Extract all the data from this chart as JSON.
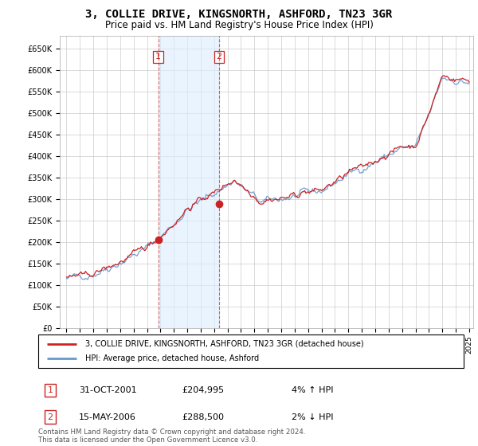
{
  "title": "3, COLLIE DRIVE, KINGSNORTH, ASHFORD, TN23 3GR",
  "subtitle": "Price paid vs. HM Land Registry's House Price Index (HPI)",
  "title_fontsize": 10,
  "subtitle_fontsize": 8.5,
  "ylim": [
    0,
    680000
  ],
  "yticks": [
    0,
    50000,
    100000,
    150000,
    200000,
    250000,
    300000,
    350000,
    400000,
    450000,
    500000,
    550000,
    600000,
    650000
  ],
  "ytick_labels": [
    "£0",
    "£50K",
    "£100K",
    "£150K",
    "£200K",
    "£250K",
    "£300K",
    "£350K",
    "£400K",
    "£450K",
    "£500K",
    "£550K",
    "£600K",
    "£650K"
  ],
  "x_start_year": 1995,
  "x_end_year": 2025,
  "hpi_color": "#6699cc",
  "price_color": "#cc2222",
  "shade_color": "#ddeeff",
  "sale1_x": 2001.83,
  "sale1_price": 204995,
  "sale1_date_label": "31-OCT-2001",
  "sale1_hpi_note": "4% ↑ HPI",
  "sale2_x": 2006.37,
  "sale2_price": 288500,
  "sale2_date_label": "15-MAY-2006",
  "sale2_hpi_note": "2% ↓ HPI",
  "legend_label_price": "3, COLLIE DRIVE, KINGSNORTH, ASHFORD, TN23 3GR (detached house)",
  "legend_label_hpi": "HPI: Average price, detached house, Ashford",
  "footnote": "Contains HM Land Registry data © Crown copyright and database right 2024.\nThis data is licensed under the Open Government Licence v3.0.",
  "background_color": "#ffffff",
  "grid_color": "#cccccc"
}
